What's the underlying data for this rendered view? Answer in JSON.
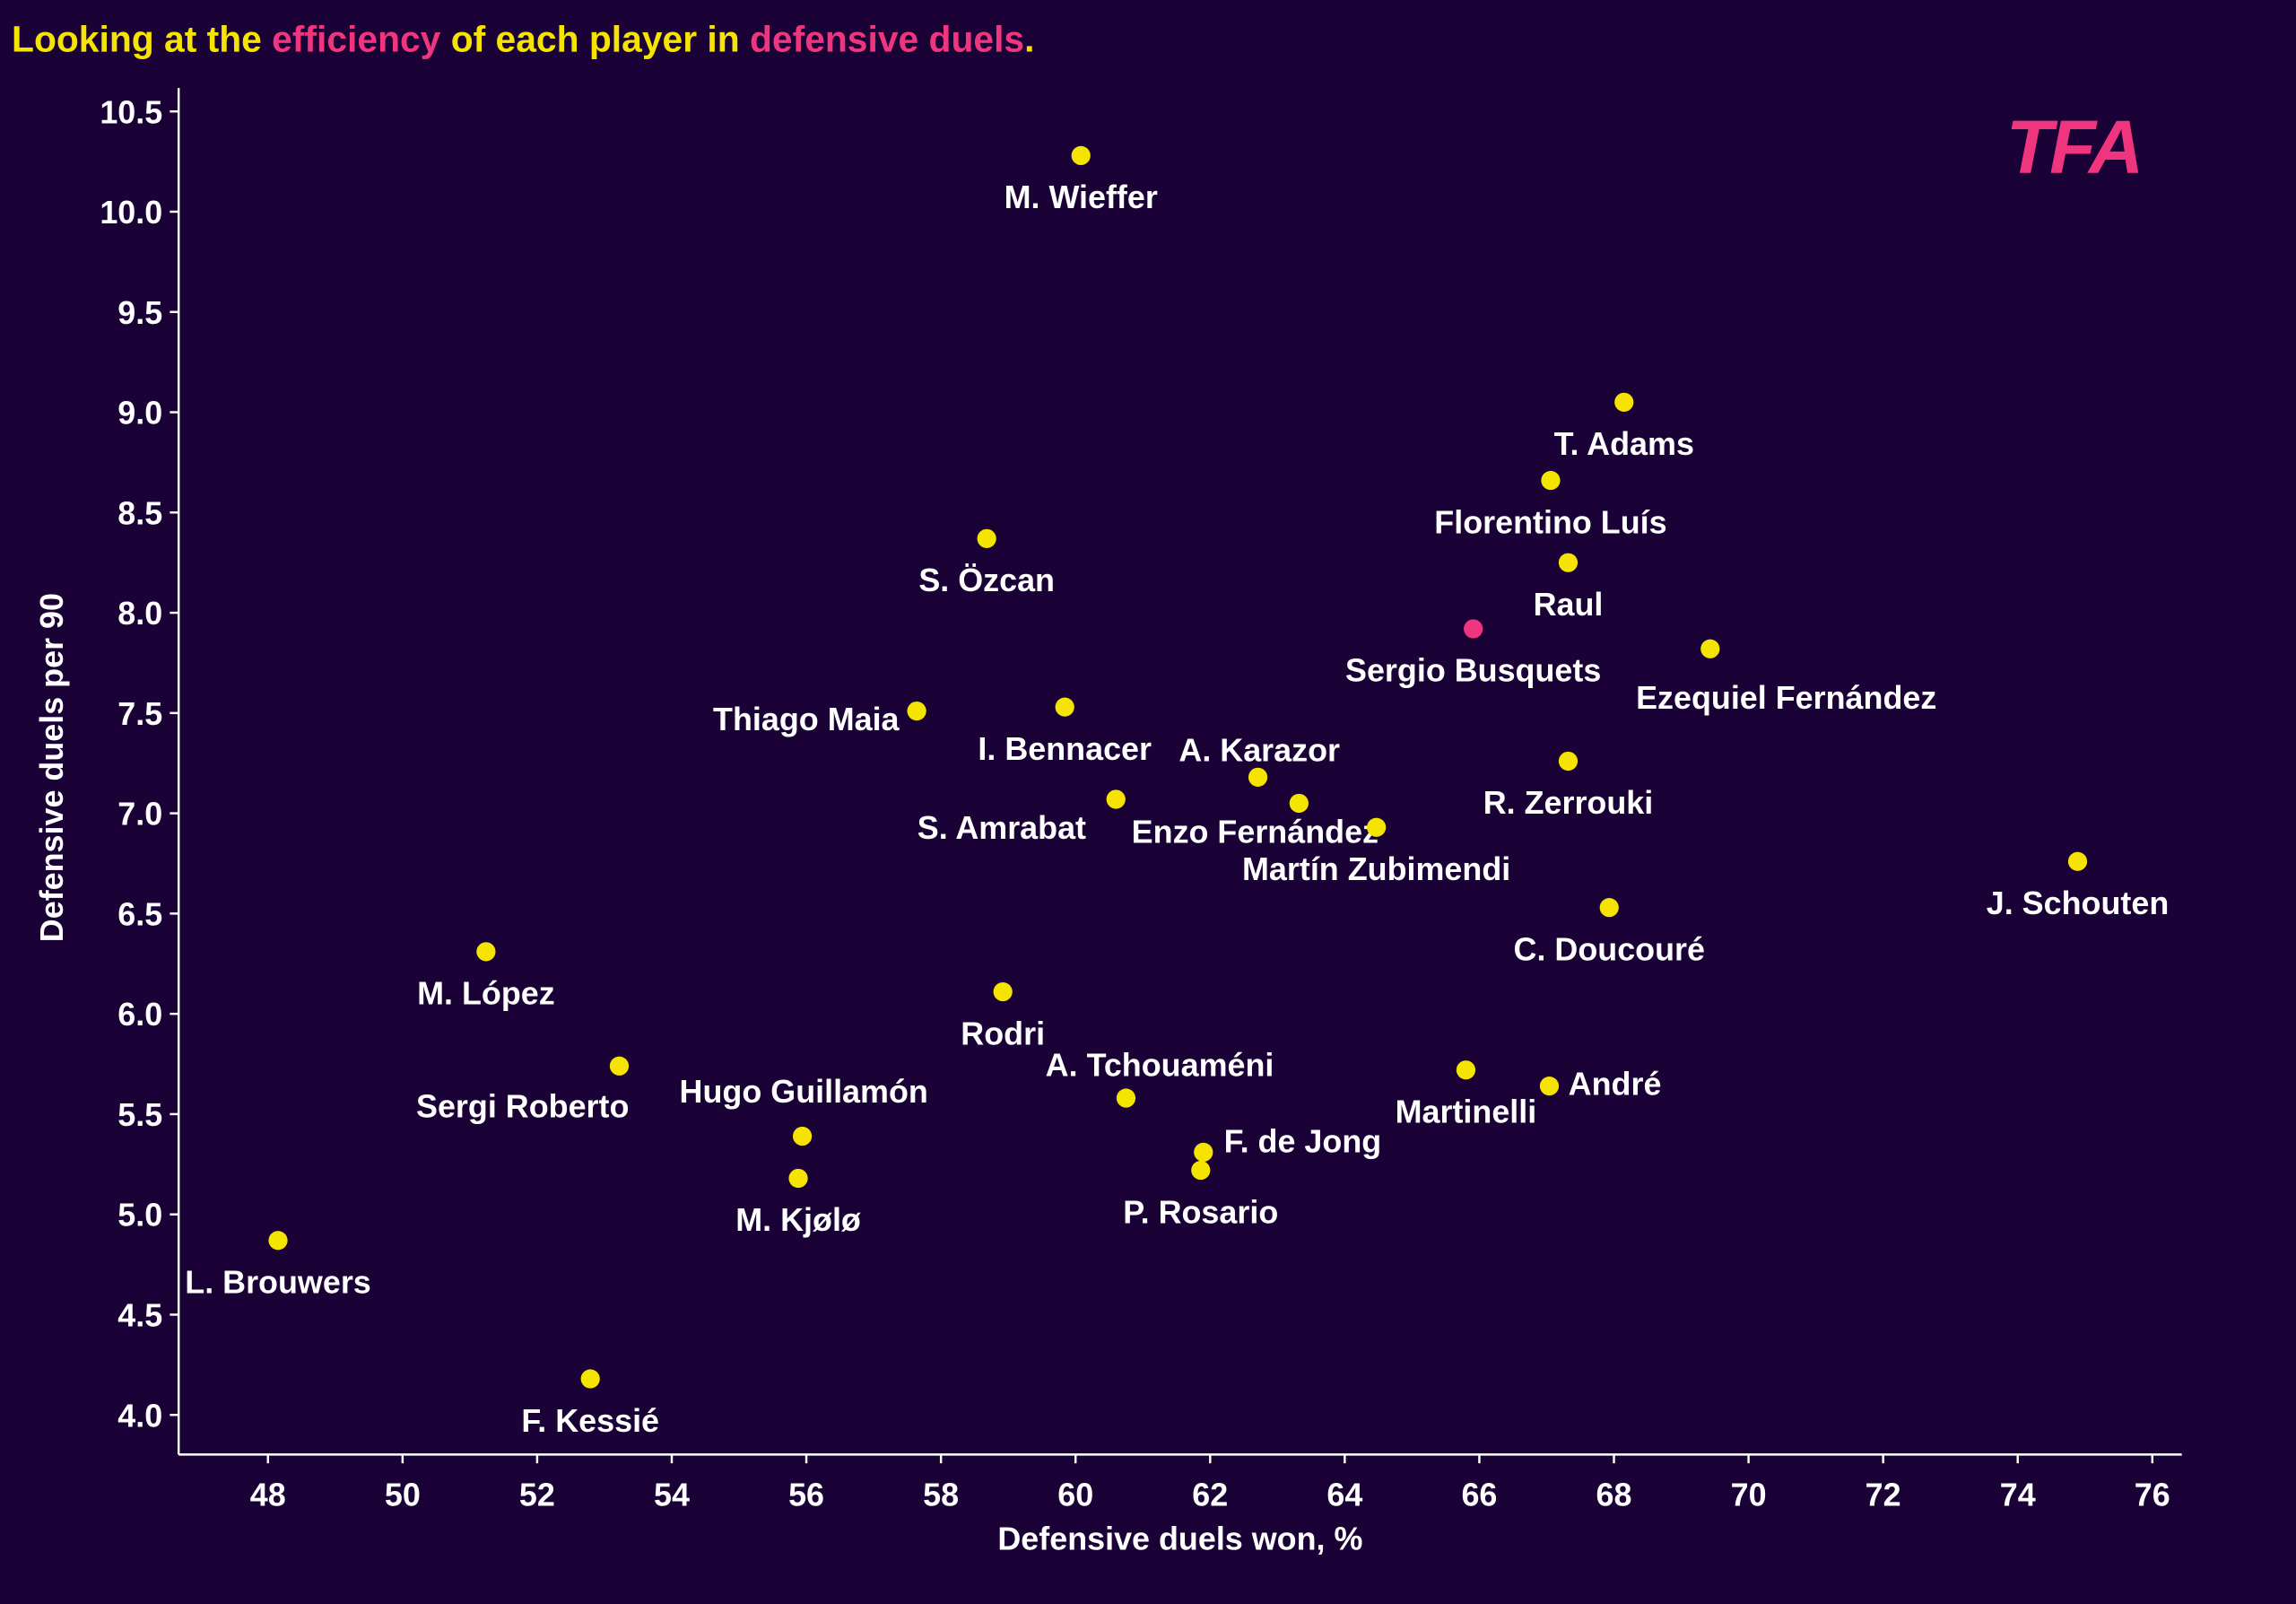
{
  "chart_data": {
    "type": "scatter",
    "title_parts": [
      {
        "text": "Looking at the ",
        "color": "#f5e400"
      },
      {
        "text": "efficiency",
        "color": "#f0357f"
      },
      {
        "text": " of each player in ",
        "color": "#f5e400"
      },
      {
        "text": "defensive duels",
        "color": "#f0357f"
      },
      {
        "text": ".",
        "color": "#f5e400"
      }
    ],
    "xlabel": "Defensive duels won, %",
    "ylabel": "Defensive duels per 90",
    "xlim": [
      46.7,
      76.4
    ],
    "ylim": [
      3.8,
      10.6
    ],
    "xticks": [
      48,
      50,
      52,
      54,
      56,
      58,
      60,
      62,
      64,
      66,
      68,
      70,
      72,
      74,
      76
    ],
    "yticks": [
      "4.0",
      "4.5",
      "5.0",
      "5.5",
      "6.0",
      "6.5",
      "7.0",
      "7.5",
      "8.0",
      "8.5",
      "9.0",
      "9.5",
      "10.0",
      "10.5"
    ],
    "grid": false,
    "logo": "TFA",
    "colors": {
      "background": "#1a0136",
      "point": "#f5e400",
      "highlight": "#f0357f",
      "text": "#ffffff",
      "logo": "#f0357f"
    },
    "points": [
      {
        "name": "M. Wieffer",
        "x": 60.08,
        "y": 10.28
      },
      {
        "name": "T. Adams",
        "x": 68.15,
        "y": 9.05
      },
      {
        "name": "Florentino Luís",
        "x": 67.06,
        "y": 8.66
      },
      {
        "name": "Raul",
        "x": 67.32,
        "y": 8.25
      },
      {
        "name": "Sergio Busquets",
        "x": 65.91,
        "y": 7.92,
        "highlight": true
      },
      {
        "name": "Ezequiel Fernández",
        "x": 69.43,
        "y": 7.82
      },
      {
        "name": "S. Özcan",
        "x": 58.68,
        "y": 8.37
      },
      {
        "name": "Thiago Maia",
        "x": 57.64,
        "y": 7.51
      },
      {
        "name": "I. Bennacer",
        "x": 59.84,
        "y": 7.53
      },
      {
        "name": "A. Karazor",
        "x": 62.71,
        "y": 7.18
      },
      {
        "name": "Enzo Fernández",
        "x": 63.32,
        "y": 7.05
      },
      {
        "name": "Martín Zubimendi",
        "x": 64.47,
        "y": 6.93
      },
      {
        "name": "S. Amrabat",
        "x": 60.6,
        "y": 7.07
      },
      {
        "name": "R. Zerrouki",
        "x": 67.32,
        "y": 7.26
      },
      {
        "name": "J. Schouten",
        "x": 74.89,
        "y": 6.76
      },
      {
        "name": "C. Doucouré",
        "x": 67.93,
        "y": 6.53
      },
      {
        "name": "M. López",
        "x": 51.24,
        "y": 6.31
      },
      {
        "name": "Rodri",
        "x": 58.92,
        "y": 6.11
      },
      {
        "name": "Sergi Roberto",
        "x": 53.22,
        "y": 5.74
      },
      {
        "name": "A. Tchouaméni",
        "x": 60.75,
        "y": 5.58
      },
      {
        "name": "Martinelli",
        "x": 65.8,
        "y": 5.72
      },
      {
        "name": "André",
        "x": 67.04,
        "y": 5.64
      },
      {
        "name": "Hugo Guillamón",
        "x": 55.94,
        "y": 5.39
      },
      {
        "name": "M. Kjølø",
        "x": 55.88,
        "y": 5.18
      },
      {
        "name": "F. de Jong",
        "x": 61.9,
        "y": 5.31
      },
      {
        "name": "P. Rosario",
        "x": 61.86,
        "y": 5.22
      },
      {
        "name": "L. Brouwers",
        "x": 48.15,
        "y": 4.87
      },
      {
        "name": "F. Kessié",
        "x": 52.79,
        "y": 4.18
      }
    ]
  }
}
